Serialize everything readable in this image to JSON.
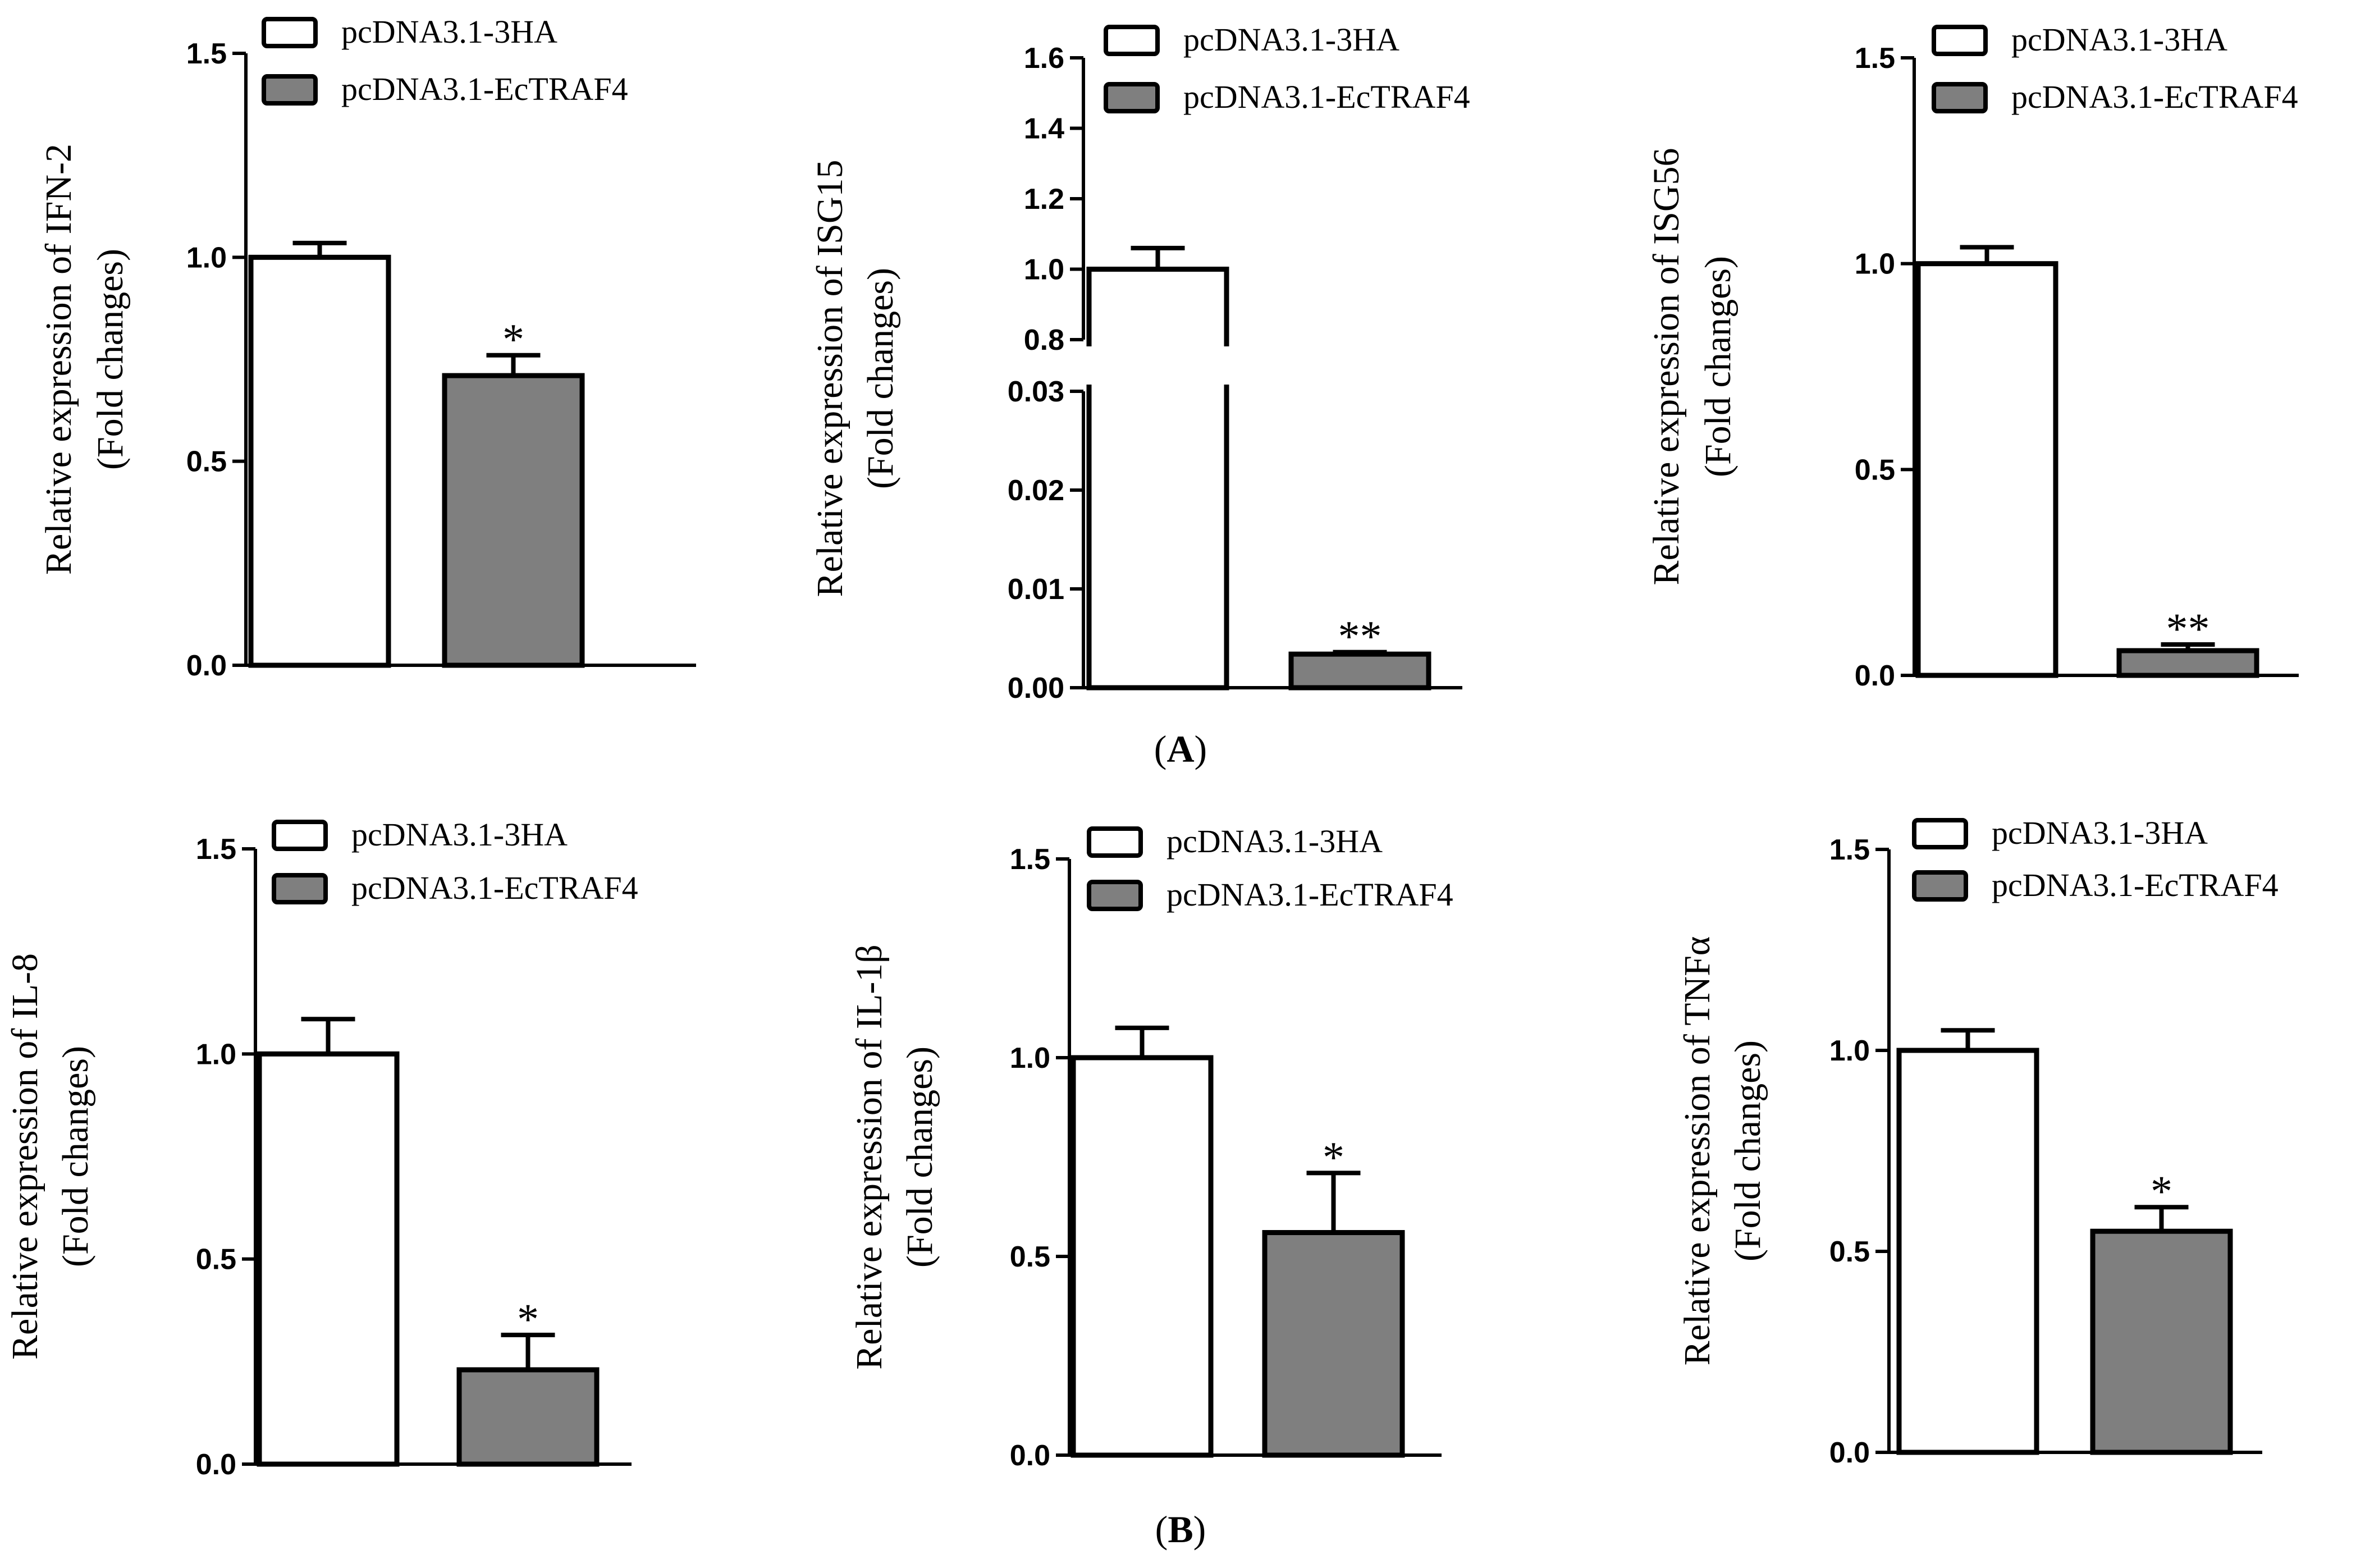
{
  "legend_labels": [
    "pcDNA3.1-3HA",
    "pcDNA3.1-EcTRAF4"
  ],
  "series_colors": {
    "pcDNA3.1-3HA": "#ffffff",
    "pcDNA3.1-EcTRAF4": "#7f7f7f"
  },
  "panel_labels": [
    {
      "prefix": "(",
      "letter": "A",
      "suffix": ")"
    },
    {
      "prefix": "(",
      "letter": "B",
      "suffix": ")"
    }
  ],
  "chart_data": [
    {
      "type": "bar",
      "panel": "A",
      "ylabel_line1": "Relative expression of IFN-2",
      "ylabel_line2": "(Fold changes)",
      "categories": [
        "pcDNA3.1-3HA",
        "pcDNA3.1-EcTRAF4"
      ],
      "values": [
        1.0,
        0.71
      ],
      "errors": [
        0.035,
        0.05
      ],
      "significance": [
        "",
        "*"
      ],
      "ylim": [
        0,
        1.5
      ],
      "yticks": [
        0.0,
        0.5,
        1.0,
        1.5
      ],
      "ytick_labels": [
        "0.0",
        "0.5",
        "1.0",
        "1.5"
      ]
    },
    {
      "type": "bar",
      "panel": "A",
      "ylabel_line1": "Relative expression of ISG15",
      "ylabel_line2": "(Fold changes)",
      "categories": [
        "pcDNA3.1-3HA",
        "pcDNA3.1-EcTRAF4"
      ],
      "values": [
        1.0,
        0.0034
      ],
      "errors": [
        0.06,
        0.0002
      ],
      "significance": [
        "",
        "**"
      ],
      "broken_axis": true,
      "ylim_lower": [
        0,
        0.03
      ],
      "yticks_lower": [
        0.0,
        0.01,
        0.02,
        0.03
      ],
      "ytick_labels_lower": [
        "0.00",
        "0.01",
        "0.02",
        "0.03"
      ],
      "ylim_upper": [
        0.8,
        1.6
      ],
      "yticks_upper": [
        0.8,
        1.0,
        1.2,
        1.4,
        1.6
      ],
      "ytick_labels_upper": [
        "0.8",
        "1.0",
        "1.2",
        "1.4",
        "1.6"
      ]
    },
    {
      "type": "bar",
      "panel": "A",
      "ylabel_line1": "Relative expression of ISG56",
      "ylabel_line2": "(Fold changes)",
      "categories": [
        "pcDNA3.1-3HA",
        "pcDNA3.1-EcTRAF4"
      ],
      "values": [
        1.0,
        0.06
      ],
      "errors": [
        0.04,
        0.015
      ],
      "significance": [
        "",
        "**"
      ],
      "ylim": [
        0,
        1.5
      ],
      "yticks": [
        0.0,
        0.5,
        1.0,
        1.5
      ],
      "ytick_labels": [
        "0.0",
        "0.5",
        "1.0",
        "1.5"
      ]
    },
    {
      "type": "bar",
      "panel": "B",
      "ylabel_line1": "Relative expression of IL-8",
      "ylabel_line2": "(Fold changes)",
      "categories": [
        "pcDNA3.1-3HA",
        "pcDNA3.1-EcTRAF4"
      ],
      "values": [
        1.0,
        0.23
      ],
      "errors": [
        0.085,
        0.085
      ],
      "significance": [
        "",
        "*"
      ],
      "ylim": [
        0,
        1.5
      ],
      "yticks": [
        0.0,
        0.5,
        1.0,
        1.5
      ],
      "ytick_labels": [
        "0.0",
        "0.5",
        "1.0",
        "1.5"
      ]
    },
    {
      "type": "bar",
      "panel": "B",
      "ylabel_line1": "Relative expression of IL-1β",
      "ylabel_line2": "(Fold changes)",
      "categories": [
        "pcDNA3.1-3HA",
        "pcDNA3.1-EcTRAF4"
      ],
      "values": [
        1.0,
        0.56
      ],
      "errors": [
        0.075,
        0.15
      ],
      "significance": [
        "",
        "*"
      ],
      "ylim": [
        0,
        1.5
      ],
      "yticks": [
        0.0,
        0.5,
        1.0,
        1.5
      ],
      "ytick_labels": [
        "0.0",
        "0.5",
        "1.0",
        "1.5"
      ]
    },
    {
      "type": "bar",
      "panel": "B",
      "ylabel_line1": "Relative expression of TNFα",
      "ylabel_line2": "(Fold changes)",
      "categories": [
        "pcDNA3.1-3HA",
        "pcDNA3.1-EcTRAF4"
      ],
      "values": [
        1.0,
        0.55
      ],
      "errors": [
        0.05,
        0.06
      ],
      "significance": [
        "",
        "*"
      ],
      "ylim": [
        0,
        1.5
      ],
      "yticks": [
        0.0,
        0.5,
        1.0,
        1.5
      ],
      "ytick_labels": [
        "0.0",
        "0.5",
        "1.0",
        "1.5"
      ]
    }
  ]
}
